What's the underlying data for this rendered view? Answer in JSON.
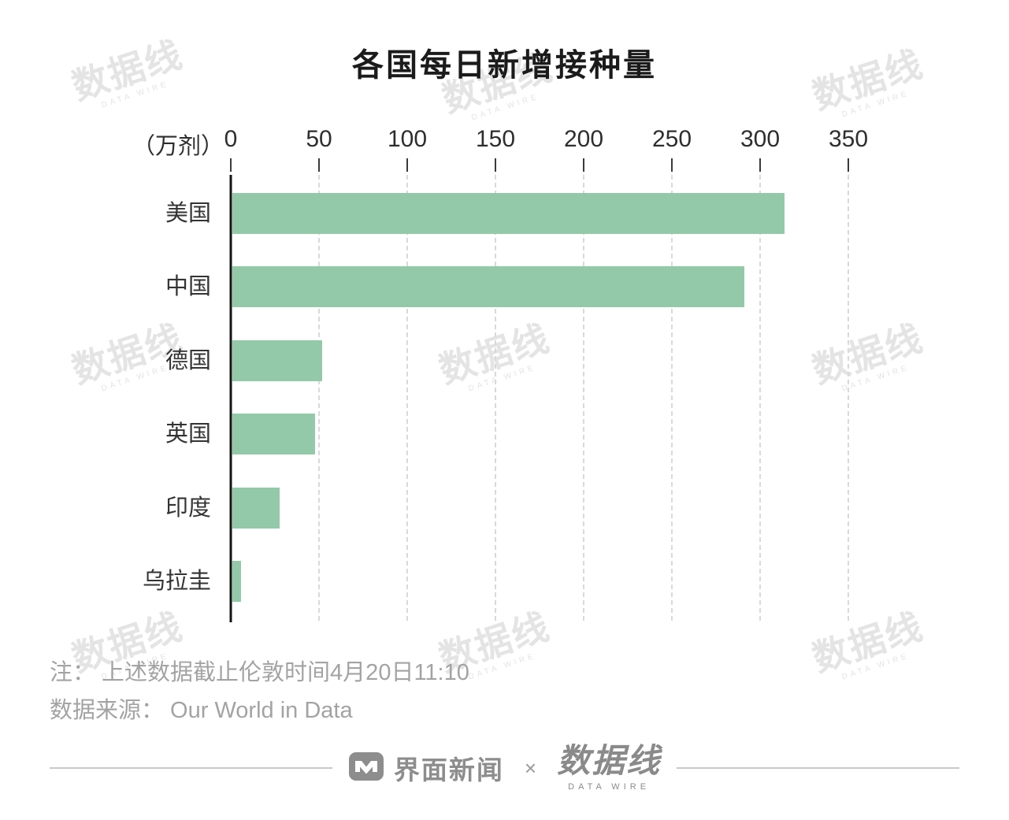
{
  "title": "各国每日新增接种量",
  "chart_data": {
    "type": "bar",
    "orientation": "horizontal",
    "title": "各国每日新增接种量",
    "unit_label": "（万剂）",
    "categories": [
      "美国",
      "中国",
      "德国",
      "英国",
      "印度",
      "乌拉圭"
    ],
    "values": [
      313,
      290,
      51,
      47,
      27,
      5
    ],
    "x_ticks": [
      0,
      50,
      100,
      150,
      200,
      250,
      300,
      350
    ],
    "xlim": [
      0,
      350
    ],
    "bar_color": "#93c9a8",
    "grid": "dashed-vertical",
    "legend": "none"
  },
  "notes": {
    "line1": "注： 上述数据截止伦敦时间4月20日11:10",
    "line2": "数据来源： Our World in Data"
  },
  "footer": {
    "brand1": "界面新闻",
    "separator": "×",
    "brand2": "数据线",
    "brand2_sub": "DATA WIRE"
  },
  "watermark": {
    "text": "数据线",
    "subtext": "DATA WIRE"
  }
}
